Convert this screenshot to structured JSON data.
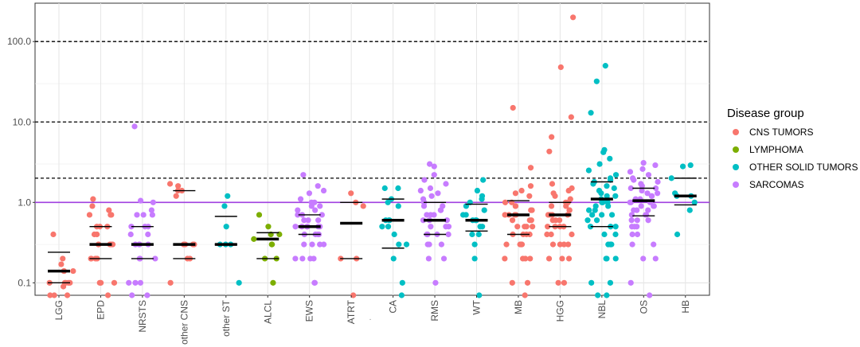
{
  "chart_data": {
    "type": "scatter",
    "subtype": "jitter-strip",
    "title": "",
    "xlabel": "",
    "ylabel": "",
    "y_scale": "log10",
    "ylim": [
      0.07,
      300
    ],
    "y_ticks": [
      0.1,
      1.0,
      10.0,
      100.0
    ],
    "y_tick_labels": [
      "0.1",
      "1.0",
      "10.0",
      "100.0"
    ],
    "grid": true,
    "reference_lines": [
      {
        "value": 2,
        "style": "dashed",
        "color": "#000000"
      },
      {
        "value": 10,
        "style": "dashed",
        "color": "#000000"
      },
      {
        "value": 100,
        "style": "dashed",
        "color": "#000000"
      },
      {
        "value": 1,
        "style": "solid",
        "color": "#a040e0"
      }
    ],
    "categories": [
      "LGG",
      "EPD",
      "NRSTS",
      "other CNS",
      "other ST",
      "ALCL",
      "EWS",
      "ATRT",
      "CA",
      "RMS",
      "WT",
      "MB",
      "HGG",
      "NBL",
      "OS",
      "HB"
    ],
    "stray_mark": ".",
    "legend": {
      "title": "Disease group",
      "position": "right",
      "items": [
        {
          "label": "CNS TUMORS",
          "color": "#F8766D"
        },
        {
          "label": "LYMPHOMA",
          "color": "#7CAE00"
        },
        {
          "label": "OTHER SOLID TUMORS",
          "color": "#00BFC4"
        },
        {
          "label": "SARCOMAS",
          "color": "#C77CFF"
        }
      ]
    },
    "groups": [
      {
        "category": "LGG",
        "group": "CNS TUMORS",
        "median": 0.14,
        "q1": 0.1,
        "q3": 0.24,
        "points": [
          0.09,
          0.4,
          0.2,
          0.14,
          0.14,
          0.14,
          0.1,
          0.1,
          0.1,
          0.1,
          0.1,
          0.07,
          0.07,
          0.07,
          0.17
        ]
      },
      {
        "category": "EPD",
        "group": "CNS TUMORS",
        "median": 0.3,
        "q1": 0.2,
        "q3": 0.5,
        "points": [
          1.1,
          0.9,
          0.8,
          0.7,
          0.7,
          0.7,
          0.5,
          0.5,
          0.5,
          0.4,
          0.4,
          0.3,
          0.3,
          0.3,
          0.3,
          0.3,
          0.2,
          0.2,
          0.2,
          0.2,
          0.1,
          0.1,
          0.1,
          0.07
        ]
      },
      {
        "category": "NRSTS",
        "group": "SARCOMAS",
        "median": 0.3,
        "q1": 0.2,
        "q3": 0.5,
        "points": [
          8.8,
          1.05,
          1.0,
          0.8,
          0.7,
          0.7,
          0.7,
          0.5,
          0.5,
          0.5,
          0.4,
          0.4,
          0.3,
          0.3,
          0.3,
          0.3,
          0.2,
          0.2,
          0.2,
          0.1,
          0.1,
          0.1,
          0.07,
          0.07
        ]
      },
      {
        "category": "other CNS",
        "group": "CNS TUMORS",
        "median": 0.3,
        "q1": 0.2,
        "q3": 1.4,
        "points": [
          1.7,
          1.6,
          1.4,
          1.4,
          1.2,
          0.3,
          0.3,
          0.3,
          0.3,
          0.2,
          0.2,
          0.1
        ]
      },
      {
        "category": "other ST",
        "group": "OTHER SOLID TUMORS",
        "median": 0.3,
        "q1": 0.3,
        "q3": 0.67,
        "points": [
          1.2,
          0.9,
          0.5,
          0.3,
          0.3,
          0.3,
          0.1
        ]
      },
      {
        "category": "ALCL",
        "group": "LYMPHOMA",
        "median": 0.35,
        "q1": 0.2,
        "q3": 0.42,
        "points": [
          0.7,
          0.5,
          0.4,
          0.4,
          0.35,
          0.3,
          0.3,
          0.2,
          0.2,
          0.1
        ]
      },
      {
        "category": "EWS",
        "group": "SARCOMAS",
        "median": 0.5,
        "q1": 0.4,
        "q3": 0.7,
        "points": [
          2.2,
          1.6,
          1.4,
          1.3,
          1.1,
          1.0,
          1.0,
          0.9,
          0.9,
          0.8,
          0.8,
          0.7,
          0.7,
          0.7,
          0.6,
          0.6,
          0.6,
          0.5,
          0.5,
          0.5,
          0.5,
          0.5,
          0.5,
          0.4,
          0.4,
          0.4,
          0.4,
          0.3,
          0.3,
          0.3,
          0.3,
          0.2,
          0.2,
          0.2,
          0.2,
          0.1,
          0.1
        ]
      },
      {
        "category": "ATRT",
        "group": "CNS TUMORS",
        "median": 0.55,
        "q1": 0.2,
        "q3": 1.0,
        "points": [
          1.3,
          1.0,
          0.9,
          0.2,
          0.2,
          0.07
        ]
      },
      {
        "category": "CA",
        "group": "OTHER SOLID TUMORS",
        "median": 0.6,
        "q1": 0.27,
        "q3": 1.1,
        "points": [
          1.5,
          1.5,
          1.1,
          1.0,
          0.9,
          0.6,
          0.6,
          0.6,
          0.5,
          0.5,
          0.4,
          0.3,
          0.3,
          0.2,
          0.1,
          0.07
        ]
      },
      {
        "category": "RMS",
        "group": "SARCOMAS",
        "median": 0.6,
        "q1": 0.4,
        "q3": 1.0,
        "points": [
          3.0,
          2.8,
          2.2,
          1.9,
          1.7,
          1.5,
          1.4,
          1.3,
          1.2,
          1.1,
          1.0,
          1.0,
          0.9,
          0.9,
          0.8,
          0.8,
          0.7,
          0.7,
          0.7,
          0.6,
          0.6,
          0.6,
          0.5,
          0.5,
          0.5,
          0.4,
          0.4,
          0.4,
          0.4,
          0.3,
          0.3,
          0.3,
          0.2,
          0.2,
          0.1
        ]
      },
      {
        "category": "WT",
        "group": "OTHER SOLID TUMORS",
        "median": 0.6,
        "q1": 0.44,
        "q3": 0.95,
        "points": [
          1.9,
          1.4,
          1.2,
          1.1,
          1.0,
          0.9,
          0.8,
          0.7,
          0.7,
          0.6,
          0.6,
          0.6,
          0.5,
          0.5,
          0.4,
          0.4,
          0.3,
          0.2,
          0.07
        ]
      },
      {
        "category": "MB",
        "group": "CNS TUMORS",
        "median": 0.7,
        "q1": 0.4,
        "q3": 1.05,
        "points": [
          15,
          2.7,
          1.6,
          1.4,
          1.3,
          1.2,
          1.0,
          1.0,
          0.9,
          0.9,
          0.8,
          0.8,
          0.7,
          0.7,
          0.7,
          0.7,
          0.6,
          0.6,
          0.6,
          0.5,
          0.5,
          0.5,
          0.5,
          0.4,
          0.4,
          0.4,
          0.4,
          0.3,
          0.3,
          0.3,
          0.3,
          0.2,
          0.2,
          0.2,
          0.2,
          0.1,
          0.1,
          0.07
        ]
      },
      {
        "category": "HGG",
        "group": "CNS TUMORS",
        "median": 0.7,
        "q1": 0.5,
        "q3": 1.0,
        "points": [
          200,
          48,
          11.5,
          6.5,
          4.3,
          1.7,
          1.5,
          1.4,
          1.3,
          1.2,
          1.1,
          1.0,
          1.0,
          0.9,
          0.9,
          0.8,
          0.8,
          0.7,
          0.7,
          0.7,
          0.7,
          0.6,
          0.6,
          0.6,
          0.5,
          0.5,
          0.5,
          0.5,
          0.4,
          0.4,
          0.4,
          0.3,
          0.3,
          0.3,
          0.3,
          0.2,
          0.2,
          0.2,
          0.1,
          0.1
        ]
      },
      {
        "category": "NBL",
        "group": "OTHER SOLID TUMORS",
        "median": 1.1,
        "q1": 0.5,
        "q3": 1.8,
        "points": [
          50,
          32,
          13,
          4.5,
          4.2,
          3.5,
          3.0,
          2.5,
          2.2,
          2.0,
          1.9,
          1.8,
          1.7,
          1.6,
          1.5,
          1.4,
          1.3,
          1.2,
          1.2,
          1.1,
          1.1,
          1.0,
          1.0,
          1.0,
          0.9,
          0.9,
          0.8,
          0.8,
          0.7,
          0.7,
          0.7,
          0.6,
          0.6,
          0.5,
          0.5,
          0.5,
          0.4,
          0.4,
          0.3,
          0.3,
          0.3,
          0.2,
          0.2,
          0.2,
          0.1,
          0.1,
          0.07,
          0.07
        ]
      },
      {
        "category": "OS",
        "group": "SARCOMAS",
        "median": 1.05,
        "q1": 0.68,
        "q3": 1.5,
        "points": [
          3.1,
          2.9,
          2.6,
          2.4,
          2.2,
          2.0,
          1.9,
          1.8,
          1.7,
          1.6,
          1.5,
          1.5,
          1.4,
          1.3,
          1.3,
          1.2,
          1.2,
          1.1,
          1.1,
          1.0,
          1.0,
          1.0,
          0.9,
          0.9,
          0.9,
          0.8,
          0.8,
          0.8,
          0.7,
          0.7,
          0.7,
          0.6,
          0.6,
          0.6,
          0.5,
          0.5,
          0.5,
          0.4,
          0.4,
          0.3,
          0.3,
          0.2,
          0.2,
          0.1,
          0.07
        ]
      },
      {
        "category": "HB",
        "group": "OTHER SOLID TUMORS",
        "median": 1.2,
        "q1": 0.93,
        "q3": 2.0,
        "points": [
          2.9,
          2.8,
          2.0,
          1.3,
          1.2,
          1.2,
          1.0,
          0.8,
          0.4
        ]
      }
    ]
  }
}
